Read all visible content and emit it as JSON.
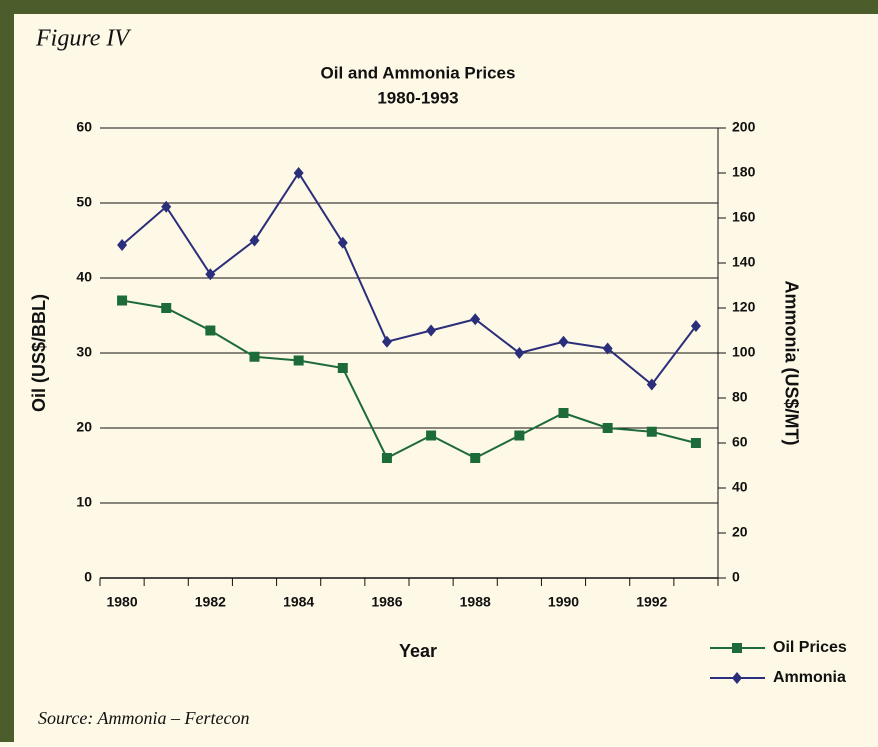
{
  "figure_label": "Figure IV",
  "source": "Source: Ammonia – Fertecon",
  "chart_data": {
    "type": "line",
    "title": "Oil and Ammonia Prices",
    "subtitle": "1980-1993",
    "x_label": "Year",
    "y_label": "Oil (US$/BBL)",
    "y2_label": "Ammonia (US$/MT)",
    "categories": [
      "1980",
      null,
      "1982",
      null,
      "1984",
      null,
      "1986",
      null,
      "1988",
      null,
      "1990",
      null,
      "1992",
      null
    ],
    "ylim": [
      0,
      60
    ],
    "yticks": [
      0,
      10,
      20,
      30,
      40,
      50,
      60
    ],
    "y2lim": [
      0,
      200
    ],
    "y2ticks": [
      0,
      20,
      40,
      60,
      80,
      100,
      120,
      140,
      160,
      180,
      200
    ],
    "grid": true,
    "legend": "lower right",
    "series": [
      {
        "name": "Oil Prices",
        "color": "#1e6b3a",
        "marker": "square",
        "values": [
          37,
          36,
          33,
          29.5,
          29,
          28,
          16,
          19,
          16,
          19,
          22,
          20,
          19.5,
          18
        ]
      },
      {
        "name": "Ammonia",
        "color": "#2b2e7a",
        "marker": "diamond",
        "axis": "y2",
        "values": [
          148,
          165,
          135,
          150,
          180,
          149,
          105,
          110,
          115,
          100,
          105,
          102,
          86,
          112
        ]
      }
    ]
  }
}
